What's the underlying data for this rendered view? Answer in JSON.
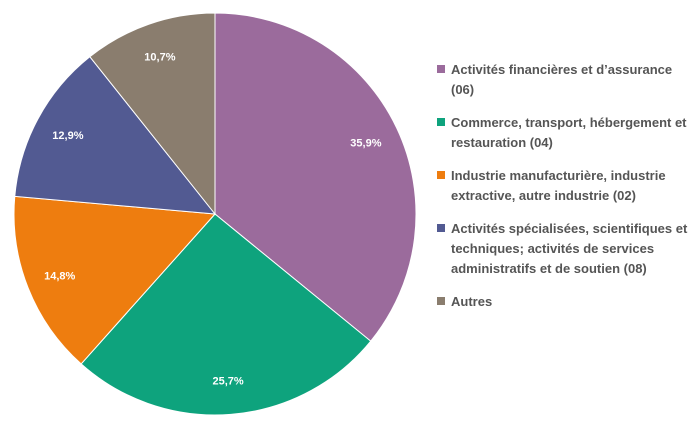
{
  "chart_data": {
    "type": "pie",
    "title": "",
    "start_angle_deg": 0,
    "direction": "clockwise",
    "slices": [
      {
        "name": "Activités financières et d’assurance (06)",
        "value": 35.9,
        "label": "35,9%",
        "color": "#9b6b9c"
      },
      {
        "name": "Commerce, transport, hébergement et restauration (04)",
        "value": 25.7,
        "label": "25,7%",
        "color": "#0ea37d"
      },
      {
        "name": "Industrie manufacturière, industrie extractive, autre industrie (02)",
        "value": 14.8,
        "label": "14,8%",
        "color": "#ee7d0f"
      },
      {
        "name": "Activités spécialisées, scientifiques et techniques; activités de services administratifs et de soutien (08)",
        "value": 12.9,
        "label": "12,9%",
        "color": "#525a92"
      },
      {
        "name": "Autres",
        "value": 10.7,
        "label": "10,7%",
        "color": "#8a7d6e"
      }
    ],
    "legend_position": "right"
  }
}
